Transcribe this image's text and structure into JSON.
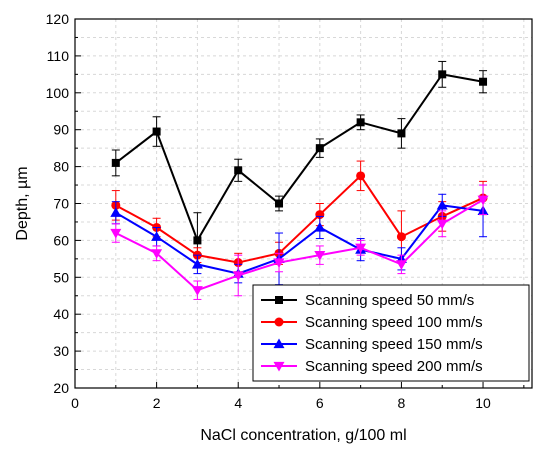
{
  "chart_data": {
    "type": "line",
    "xlabel": "NaCl concentration, g/100 ml",
    "ylabel": "Depth, µm",
    "xlim": [
      0,
      11.2
    ],
    "ylim": [
      20,
      120
    ],
    "xticks": [
      0,
      2,
      4,
      6,
      8,
      10
    ],
    "yticks": [
      20,
      30,
      40,
      50,
      60,
      70,
      80,
      90,
      100,
      110,
      120
    ],
    "grid": true,
    "legend_position": "bottom-right",
    "x": [
      1,
      2,
      3,
      4,
      5,
      6,
      7,
      8,
      9,
      10
    ],
    "series": [
      {
        "name": "Scanning speed 50 mm/s",
        "color": "#000000",
        "marker": "square",
        "values": [
          81,
          89.5,
          60,
          79,
          70,
          85,
          92,
          89,
          105,
          103
        ],
        "errors": [
          3.5,
          4,
          7.5,
          3,
          2,
          2.5,
          2,
          4,
          3.5,
          3
        ]
      },
      {
        "name": "Scanning speed 100 mm/s",
        "color": "#ff0000",
        "marker": "circle",
        "values": [
          69.5,
          63.5,
          56,
          54,
          56.5,
          67,
          77.5,
          61,
          66.5,
          71.5
        ],
        "errors": [
          4,
          2.5,
          2,
          2.5,
          3,
          3,
          4,
          7,
          4,
          4.5
        ]
      },
      {
        "name": "Scanning speed 150 mm/s",
        "color": "#0000ff",
        "marker": "triangle-up",
        "values": [
          67.5,
          61,
          53.5,
          51,
          55,
          63.5,
          57.5,
          55,
          69.5,
          68
        ],
        "errors": [
          3,
          2.5,
          2.5,
          2.5,
          7,
          3,
          3,
          3,
          3,
          7
        ]
      },
      {
        "name": "Scanning speed 200 mm/s",
        "color": "#ff00ff",
        "marker": "triangle-down",
        "values": [
          62,
          56.5,
          46.5,
          50.5,
          54,
          56,
          58,
          53.5,
          64.5,
          71
        ],
        "errors": [
          2.5,
          2,
          2.5,
          5.5,
          2.5,
          2.5,
          2,
          2.5,
          3.5,
          4
        ]
      }
    ]
  }
}
